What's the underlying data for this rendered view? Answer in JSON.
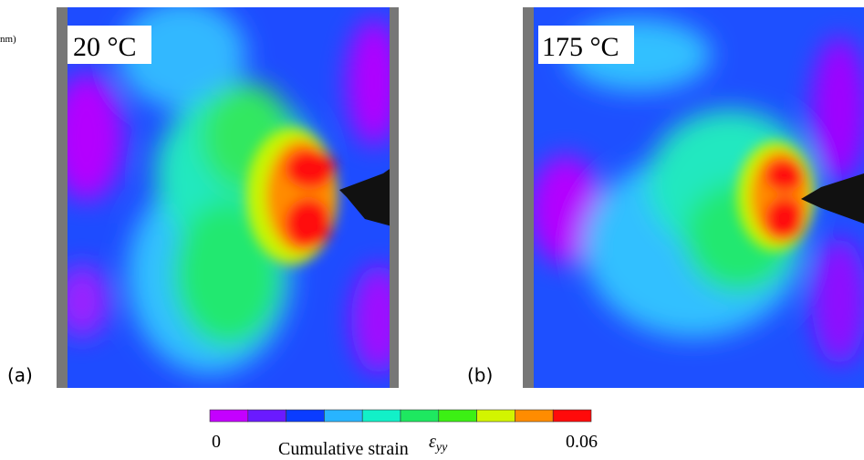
{
  "figure": {
    "clipped_text": "nm)",
    "panels": [
      {
        "label": "(a)",
        "temperature": "20 °C"
      },
      {
        "label": "(b)",
        "temperature": "175 °C"
      }
    ],
    "colorbar": {
      "colors": [
        "#c400ff",
        "#6a1aff",
        "#0a3cff",
        "#28b4ff",
        "#12f0c8",
        "#1ee860",
        "#3cf014",
        "#d2f500",
        "#ff8c00",
        "#ff0a0a"
      ],
      "min": "0",
      "max": "0.06",
      "label": "Cumulative strain",
      "symbol": "ε",
      "symbol_subscript": "yy"
    }
  }
}
